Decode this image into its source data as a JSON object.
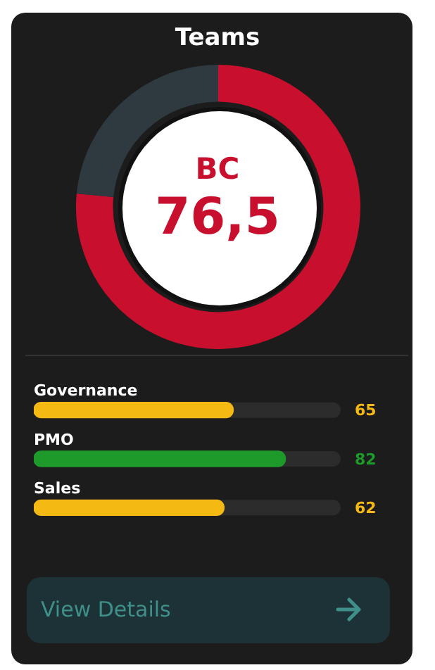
{
  "chart_data": [
    {
      "type": "donut",
      "title": "Teams",
      "categories": [
        "BC",
        null
      ],
      "values": [
        76.5,
        23.5
      ],
      "value_labels": [
        "76,5",
        null
      ],
      "colors": [
        "#c8102e",
        "#2e3a40"
      ]
    },
    {
      "type": "bar",
      "orientation": "horizontal",
      "categories": [
        "Governance",
        "PMO",
        "Sales"
      ],
      "values": [
        65,
        82,
        62
      ],
      "colors": [
        "#f5b914",
        "#1e9a2a",
        "#f5b914"
      ],
      "xlim": [
        0,
        100
      ],
      "data_labels": true,
      "tick_labels": false,
      "annotations": [
        "View Details"
      ]
    }
  ]
}
